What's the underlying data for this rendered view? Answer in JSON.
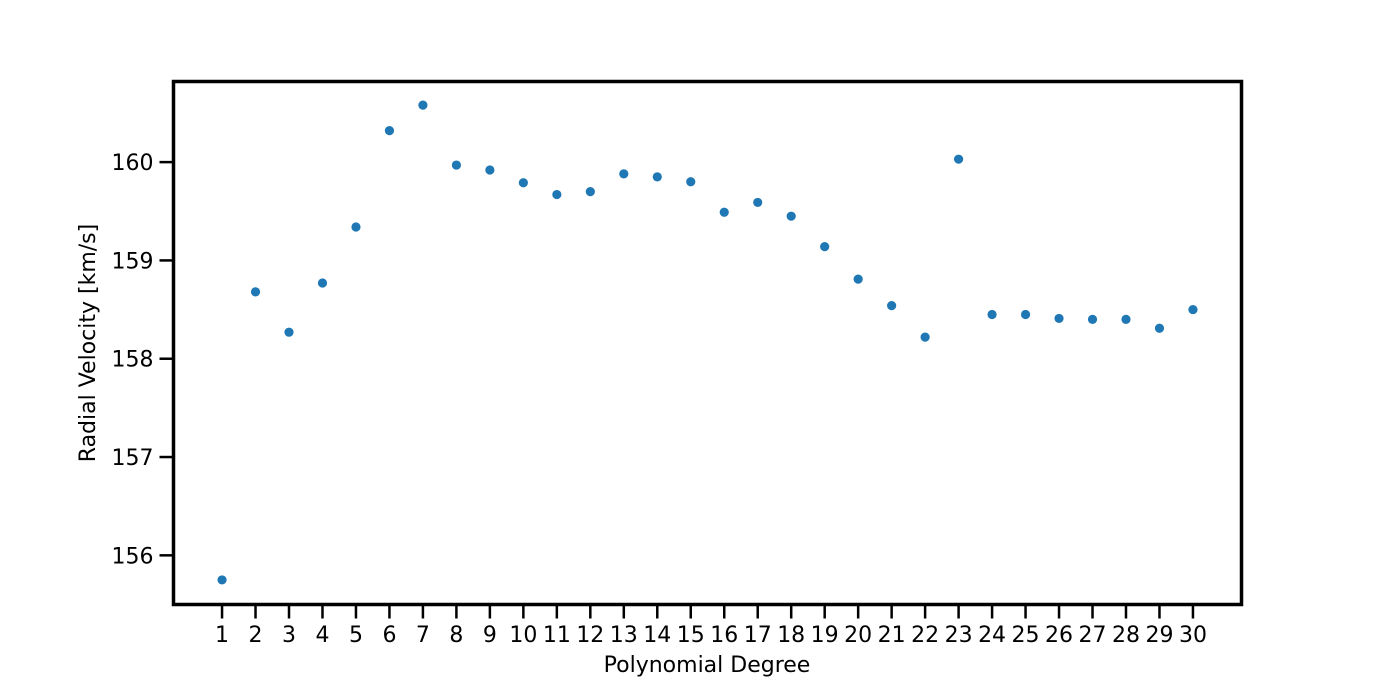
{
  "chart_data": {
    "type": "scatter",
    "title": "",
    "xlabel": "Polynomial Degree",
    "ylabel": "Radial Velocity [km/s]",
    "xlim": [
      -0.45,
      31.45
    ],
    "ylim": [
      155.5,
      160.82
    ],
    "grid": false,
    "x_ticks": [
      1,
      2,
      3,
      4,
      5,
      6,
      7,
      8,
      9,
      10,
      11,
      12,
      13,
      14,
      15,
      16,
      17,
      18,
      19,
      20,
      21,
      22,
      23,
      24,
      25,
      26,
      27,
      28,
      29,
      30
    ],
    "y_ticks": [
      156,
      157,
      158,
      159,
      160
    ],
    "marker_color": "#1f77b4",
    "series": [
      {
        "x": [
          1,
          2,
          3,
          4,
          5,
          6,
          7,
          8,
          9,
          10,
          11,
          12,
          13,
          14,
          15,
          16,
          17,
          18,
          19,
          20,
          21,
          22,
          23,
          24,
          25,
          26,
          27,
          28,
          29,
          30
        ],
        "values": [
          155.75,
          158.68,
          158.27,
          158.77,
          159.34,
          160.32,
          160.58,
          159.97,
          159.92,
          159.79,
          159.67,
          159.7,
          159.88,
          159.85,
          159.8,
          159.49,
          159.59,
          159.45,
          159.14,
          158.81,
          158.54,
          158.22,
          160.03,
          158.45,
          158.45,
          158.41,
          158.4,
          158.4,
          158.31,
          158.5
        ]
      }
    ]
  }
}
